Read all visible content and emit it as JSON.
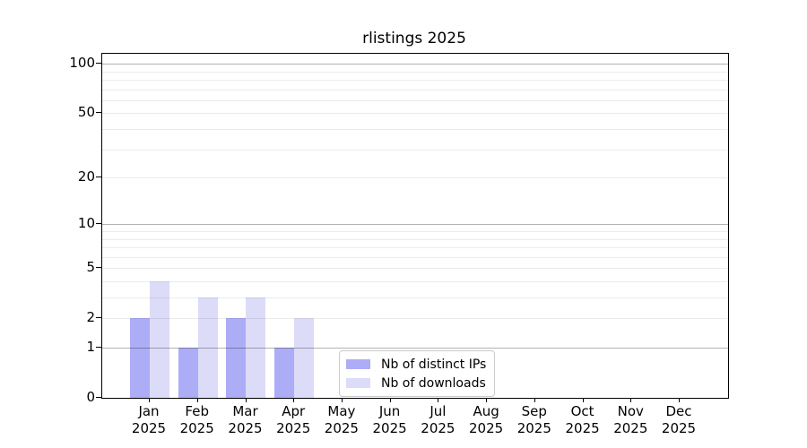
{
  "chart_data": {
    "type": "bar",
    "title": "rlistings 2025",
    "categories": [
      "Jan 2025",
      "Feb 2025",
      "Mar 2025",
      "Apr 2025",
      "May 2025",
      "Jun 2025",
      "Jul 2025",
      "Aug 2025",
      "Sep 2025",
      "Oct 2025",
      "Nov 2025",
      "Dec 2025"
    ],
    "series": [
      {
        "name": "Nb of distinct IPs",
        "color": "#abablight",
        "values": [
          2,
          1,
          2,
          1,
          0,
          0,
          0,
          0,
          0,
          0,
          0,
          0
        ]
      },
      {
        "name": "Nb of downloads",
        "color": "#dcdcf8",
        "values": [
          4,
          3,
          3,
          2,
          0,
          0,
          0,
          0,
          0,
          0,
          0,
          0
        ]
      }
    ],
    "y_scale": "log10(1+y)",
    "y_axis_tick_labels": [
      0,
      1,
      2,
      5,
      10,
      20,
      50,
      100
    ],
    "y_gridlines_major": [
      1,
      10,
      100
    ],
    "y_gridlines_minor": [
      2,
      3,
      4,
      5,
      6,
      7,
      8,
      9,
      20,
      30,
      40,
      50,
      60,
      70,
      80,
      90
    ],
    "y_max": 115,
    "xlabel": "",
    "ylabel": "",
    "grid": true,
    "legend_position": "bottom-center-inside",
    "colors": {
      "distinct_ips_bar": "#acacf7",
      "downloads_bar": "#dcdcf8",
      "grid_major": "#b3b3b3",
      "grid_minor": "#ebebeb",
      "spine": "#000000",
      "background": "#ffffff"
    }
  }
}
